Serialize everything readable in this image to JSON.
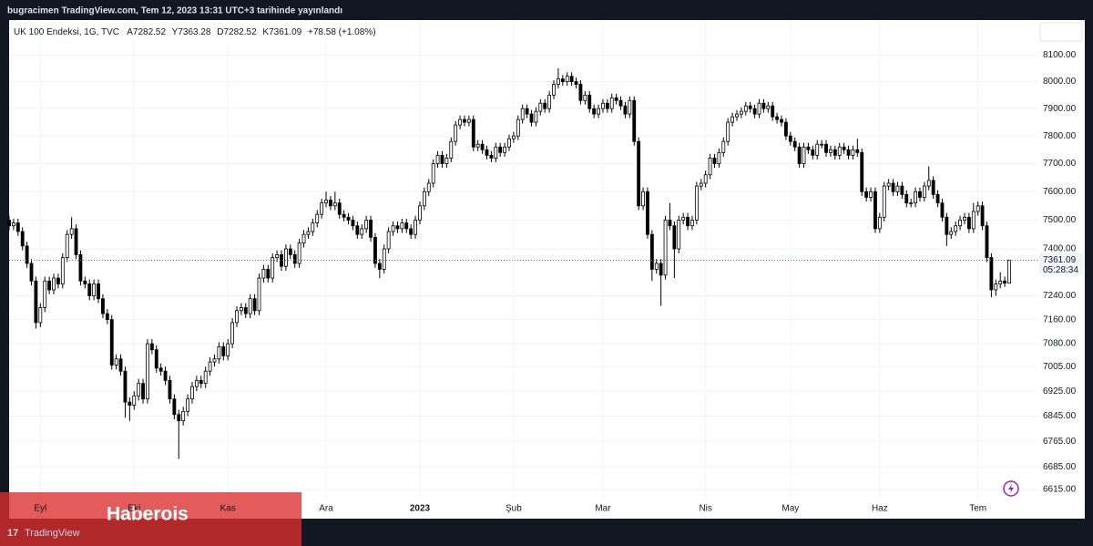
{
  "top_bar": {
    "text": "bugracimen TradingView.com, Tem 12, 2023 13:31 UTC+3 tarihinde yayınlandı"
  },
  "chart_data": {
    "type": "candlestick",
    "symbol": "UK 100 Endeksi, 1G, TVC",
    "ohlc_labels": [
      "A7282.52",
      "Y7363.28",
      "D7282.52",
      "K7361.09"
    ],
    "change_label": "+78.58 (+1.08%)",
    "log": true,
    "grid": true,
    "up_color": "#ffffff",
    "down_color": "#000000",
    "wick_color": "#000000",
    "ylim": [
      6584,
      8233
    ],
    "yticks": [
      {
        "value": 8100,
        "label": "8100.00"
      },
      {
        "value": 8000,
        "label": "8000.00"
      },
      {
        "value": 7900,
        "label": "7900.00"
      },
      {
        "value": 7800,
        "label": "7800.00"
      },
      {
        "value": 7700,
        "label": "7700.00"
      },
      {
        "value": 7600,
        "label": "7600.00"
      },
      {
        "value": 7500,
        "label": "7500.00"
      },
      {
        "value": 7400,
        "label": "7400.00"
      },
      {
        "value": 7240,
        "label": "7240.00"
      },
      {
        "value": 7160,
        "label": "7160.00"
      },
      {
        "value": 7080,
        "label": "7080.00"
      },
      {
        "value": 7005,
        "label": "7005.00"
      },
      {
        "value": 6925,
        "label": "6925.00"
      },
      {
        "value": 6845,
        "label": "6845.00"
      },
      {
        "value": 6765,
        "label": "6765.00"
      },
      {
        "value": 6685,
        "label": "6685.00"
      },
      {
        "value": 6615,
        "label": "6615.00"
      }
    ],
    "last_price": 7361.09,
    "countdown": "05:28:34",
    "xticks": [
      {
        "value": 7,
        "label": "Eyl"
      },
      {
        "value": 28,
        "label": "Eki"
      },
      {
        "value": 49,
        "label": "Kas"
      },
      {
        "value": 71,
        "label": "Ara"
      },
      {
        "value": 92,
        "label": "2023",
        "major": true
      },
      {
        "value": 113,
        "label": "Şub"
      },
      {
        "value": 133,
        "label": "Mar"
      },
      {
        "value": 156,
        "label": "Nis"
      },
      {
        "value": 175,
        "label": "May"
      },
      {
        "value": 195,
        "label": "Haz"
      },
      {
        "value": 217,
        "label": "Tem"
      }
    ],
    "candles": [
      [
        7500,
        7515,
        7465,
        7480
      ],
      [
        7480,
        7505,
        7465,
        7490
      ],
      [
        7490,
        7505,
        7445,
        7460
      ],
      [
        7460,
        7475,
        7395,
        7410
      ],
      [
        7410,
        7425,
        7335,
        7350
      ],
      [
        7350,
        7365,
        7275,
        7290
      ],
      [
        7290,
        7305,
        7130,
        7150
      ],
      [
        7150,
        7215,
        7135,
        7200
      ],
      [
        7200,
        7305,
        7185,
        7290
      ],
      [
        7290,
        7305,
        7245,
        7260
      ],
      [
        7260,
        7315,
        7245,
        7300
      ],
      [
        7300,
        7315,
        7265,
        7280
      ],
      [
        7280,
        7385,
        7265,
        7370
      ],
      [
        7370,
        7465,
        7355,
        7450
      ],
      [
        7450,
        7510,
        7435,
        7470
      ],
      [
        7470,
        7485,
        7365,
        7380
      ],
      [
        7380,
        7395,
        7275,
        7290
      ],
      [
        7290,
        7305,
        7265,
        7280
      ],
      [
        7280,
        7295,
        7225,
        7240
      ],
      [
        7240,
        7295,
        7225,
        7280
      ],
      [
        7280,
        7295,
        7215,
        7230
      ],
      [
        7230,
        7245,
        7165,
        7180
      ],
      [
        7180,
        7195,
        7145,
        7160
      ],
      [
        7160,
        7175,
        6995,
        7010
      ],
      [
        7010,
        7045,
        6995,
        7030
      ],
      [
        7030,
        7045,
        6975,
        6990
      ],
      [
        6990,
        7005,
        6840,
        6890
      ],
      [
        6890,
        6905,
        6830,
        6880
      ],
      [
        6880,
        6925,
        6865,
        6910
      ],
      [
        6910,
        6965,
        6895,
        6950
      ],
      [
        6950,
        6965,
        6885,
        6900
      ],
      [
        6900,
        7095,
        6885,
        7080
      ],
      [
        7080,
        7095,
        7045,
        7060
      ],
      [
        7060,
        7075,
        6985,
        7000
      ],
      [
        7000,
        7015,
        6975,
        6990
      ],
      [
        6990,
        7005,
        6945,
        6960
      ],
      [
        6960,
        6975,
        6885,
        6900
      ],
      [
        6900,
        6915,
        6835,
        6850
      ],
      [
        6850,
        6865,
        6710,
        6830
      ],
      [
        6830,
        6875,
        6815,
        6860
      ],
      [
        6860,
        6915,
        6845,
        6900
      ],
      [
        6900,
        6955,
        6885,
        6940
      ],
      [
        6940,
        6975,
        6925,
        6960
      ],
      [
        6960,
        6975,
        6935,
        6950
      ],
      [
        6950,
        7005,
        6935,
        6990
      ],
      [
        6990,
        7035,
        6975,
        7020
      ],
      [
        7020,
        7045,
        7005,
        7030
      ],
      [
        7030,
        7085,
        7015,
        7070
      ],
      [
        7070,
        7085,
        7025,
        7040
      ],
      [
        7040,
        7095,
        7025,
        7080
      ],
      [
        7080,
        7165,
        7065,
        7150
      ],
      [
        7150,
        7205,
        7135,
        7190
      ],
      [
        7190,
        7215,
        7175,
        7200
      ],
      [
        7200,
        7215,
        7165,
        7180
      ],
      [
        7180,
        7245,
        7165,
        7230
      ],
      [
        7230,
        7245,
        7175,
        7190
      ],
      [
        7190,
        7315,
        7175,
        7300
      ],
      [
        7300,
        7345,
        7285,
        7330
      ],
      [
        7330,
        7345,
        7285,
        7300
      ],
      [
        7300,
        7385,
        7285,
        7370
      ],
      [
        7370,
        7395,
        7355,
        7380
      ],
      [
        7380,
        7395,
        7325,
        7340
      ],
      [
        7340,
        7415,
        7325,
        7400
      ],
      [
        7400,
        7415,
        7365,
        7380
      ],
      [
        7380,
        7395,
        7335,
        7350
      ],
      [
        7350,
        7435,
        7335,
        7420
      ],
      [
        7420,
        7465,
        7405,
        7450
      ],
      [
        7450,
        7475,
        7435,
        7460
      ],
      [
        7460,
        7505,
        7445,
        7490
      ],
      [
        7490,
        7535,
        7475,
        7520
      ],
      [
        7520,
        7575,
        7505,
        7560
      ],
      [
        7560,
        7600,
        7545,
        7570
      ],
      [
        7570,
        7585,
        7535,
        7550
      ],
      [
        7550,
        7600,
        7535,
        7560
      ],
      [
        7560,
        7575,
        7505,
        7520
      ],
      [
        7520,
        7535,
        7495,
        7510
      ],
      [
        7510,
        7525,
        7485,
        7500
      ],
      [
        7500,
        7515,
        7465,
        7480
      ],
      [
        7480,
        7495,
        7435,
        7450
      ],
      [
        7450,
        7485,
        7435,
        7470
      ],
      [
        7470,
        7515,
        7455,
        7500
      ],
      [
        7500,
        7515,
        7425,
        7440
      ],
      [
        7440,
        7455,
        7335,
        7350
      ],
      [
        7350,
        7365,
        7300,
        7330
      ],
      [
        7330,
        7415,
        7315,
        7400
      ],
      [
        7400,
        7475,
        7385,
        7460
      ],
      [
        7460,
        7495,
        7445,
        7480
      ],
      [
        7480,
        7495,
        7455,
        7470
      ],
      [
        7470,
        7505,
        7455,
        7490
      ],
      [
        7490,
        7505,
        7455,
        7470
      ],
      [
        7470,
        7485,
        7435,
        7450
      ],
      [
        7450,
        7515,
        7435,
        7500
      ],
      [
        7500,
        7565,
        7485,
        7550
      ],
      [
        7550,
        7615,
        7535,
        7600
      ],
      [
        7600,
        7645,
        7585,
        7630
      ],
      [
        7630,
        7715,
        7615,
        7700
      ],
      [
        7700,
        7745,
        7685,
        7730
      ],
      [
        7730,
        7745,
        7685,
        7700
      ],
      [
        7700,
        7735,
        7685,
        7720
      ],
      [
        7720,
        7795,
        7705,
        7780
      ],
      [
        7780,
        7855,
        7765,
        7840
      ],
      [
        7840,
        7875,
        7825,
        7860
      ],
      [
        7860,
        7875,
        7835,
        7850
      ],
      [
        7850,
        7875,
        7835,
        7860
      ],
      [
        7860,
        7875,
        7745,
        7760
      ],
      [
        7760,
        7785,
        7745,
        7770
      ],
      [
        7770,
        7785,
        7735,
        7750
      ],
      [
        7750,
        7765,
        7715,
        7730
      ],
      [
        7730,
        7745,
        7705,
        7720
      ],
      [
        7720,
        7775,
        7705,
        7760
      ],
      [
        7760,
        7775,
        7725,
        7740
      ],
      [
        7740,
        7775,
        7725,
        7760
      ],
      [
        7760,
        7805,
        7745,
        7790
      ],
      [
        7790,
        7815,
        7775,
        7800
      ],
      [
        7800,
        7875,
        7785,
        7860
      ],
      [
        7860,
        7915,
        7845,
        7900
      ],
      [
        7900,
        7915,
        7865,
        7880
      ],
      [
        7880,
        7895,
        7835,
        7850
      ],
      [
        7850,
        7905,
        7835,
        7890
      ],
      [
        7890,
        7935,
        7875,
        7920
      ],
      [
        7920,
        7935,
        7885,
        7900
      ],
      [
        7900,
        7965,
        7885,
        7950
      ],
      [
        7950,
        8005,
        7935,
        7990
      ],
      [
        7990,
        8050,
        7975,
        8010
      ],
      [
        8010,
        8025,
        7985,
        8000
      ],
      [
        8000,
        8035,
        7985,
        8020
      ],
      [
        8020,
        8035,
        7985,
        8000
      ],
      [
        8000,
        8015,
        7975,
        7990
      ],
      [
        7990,
        8005,
        7915,
        7930
      ],
      [
        7930,
        7965,
        7915,
        7950
      ],
      [
        7950,
        7965,
        7885,
        7900
      ],
      [
        7900,
        7915,
        7865,
        7880
      ],
      [
        7880,
        7915,
        7865,
        7900
      ],
      [
        7900,
        7935,
        7885,
        7920
      ],
      [
        7920,
        7935,
        7885,
        7900
      ],
      [
        7900,
        7955,
        7885,
        7940
      ],
      [
        7940,
        7955,
        7915,
        7930
      ],
      [
        7930,
        7945,
        7895,
        7910
      ],
      [
        7910,
        7925,
        7865,
        7880
      ],
      [
        7880,
        7945,
        7865,
        7930
      ],
      [
        7930,
        7945,
        7765,
        7780
      ],
      [
        7780,
        7795,
        7535,
        7550
      ],
      [
        7550,
        7615,
        7535,
        7600
      ],
      [
        7600,
        7615,
        7435,
        7450
      ],
      [
        7450,
        7465,
        7290,
        7330
      ],
      [
        7330,
        7365,
        7315,
        7350
      ],
      [
        7350,
        7365,
        7206,
        7310
      ],
      [
        7310,
        7515,
        7295,
        7500
      ],
      [
        7500,
        7560,
        7465,
        7480
      ],
      [
        7480,
        7495,
        7300,
        7400
      ],
      [
        7400,
        7515,
        7385,
        7500
      ],
      [
        7500,
        7525,
        7485,
        7510
      ],
      [
        7510,
        7525,
        7465,
        7480
      ],
      [
        7480,
        7515,
        7465,
        7500
      ],
      [
        7500,
        7635,
        7485,
        7620
      ],
      [
        7620,
        7645,
        7605,
        7630
      ],
      [
        7630,
        7675,
        7615,
        7660
      ],
      [
        7660,
        7735,
        7645,
        7720
      ],
      [
        7720,
        7735,
        7685,
        7700
      ],
      [
        7700,
        7755,
        7685,
        7740
      ],
      [
        7740,
        7795,
        7725,
        7780
      ],
      [
        7780,
        7865,
        7765,
        7850
      ],
      [
        7850,
        7885,
        7835,
        7870
      ],
      [
        7870,
        7895,
        7855,
        7880
      ],
      [
        7880,
        7905,
        7865,
        7890
      ],
      [
        7890,
        7925,
        7875,
        7910
      ],
      [
        7910,
        7925,
        7885,
        7900
      ],
      [
        7900,
        7915,
        7865,
        7880
      ],
      [
        7880,
        7935,
        7865,
        7920
      ],
      [
        7920,
        7935,
        7885,
        7900
      ],
      [
        7900,
        7925,
        7885,
        7910
      ],
      [
        7910,
        7925,
        7855,
        7870
      ],
      [
        7870,
        7885,
        7845,
        7860
      ],
      [
        7860,
        7875,
        7835,
        7850
      ],
      [
        7850,
        7865,
        7785,
        7800
      ],
      [
        7800,
        7815,
        7765,
        7780
      ],
      [
        7780,
        7795,
        7745,
        7760
      ],
      [
        7760,
        7775,
        7685,
        7700
      ],
      [
        7700,
        7775,
        7685,
        7760
      ],
      [
        7760,
        7775,
        7735,
        7750
      ],
      [
        7750,
        7765,
        7715,
        7730
      ],
      [
        7730,
        7785,
        7715,
        7770
      ],
      [
        7770,
        7785,
        7755,
        7770
      ],
      [
        7770,
        7785,
        7725,
        7740
      ],
      [
        7740,
        7765,
        7725,
        7750
      ],
      [
        7750,
        7765,
        7715,
        7730
      ],
      [
        7730,
        7775,
        7715,
        7760
      ],
      [
        7760,
        7775,
        7735,
        7750
      ],
      [
        7750,
        7765,
        7715,
        7730
      ],
      [
        7730,
        7765,
        7715,
        7750
      ],
      [
        7750,
        7790,
        7725,
        7740
      ],
      [
        7740,
        7755,
        7585,
        7600
      ],
      [
        7600,
        7615,
        7565,
        7580
      ],
      [
        7580,
        7615,
        7565,
        7600
      ],
      [
        7600,
        7615,
        7455,
        7470
      ],
      [
        7470,
        7525,
        7455,
        7510
      ],
      [
        7510,
        7635,
        7495,
        7620
      ],
      [
        7620,
        7645,
        7605,
        7630
      ],
      [
        7630,
        7645,
        7585,
        7600
      ],
      [
        7600,
        7635,
        7585,
        7620
      ],
      [
        7620,
        7635,
        7575,
        7590
      ],
      [
        7590,
        7605,
        7545,
        7560
      ],
      [
        7560,
        7575,
        7545,
        7560
      ],
      [
        7560,
        7615,
        7545,
        7600
      ],
      [
        7600,
        7615,
        7565,
        7580
      ],
      [
        7580,
        7635,
        7565,
        7620
      ],
      [
        7620,
        7690,
        7605,
        7640
      ],
      [
        7640,
        7655,
        7575,
        7590
      ],
      [
        7590,
        7605,
        7545,
        7560
      ],
      [
        7560,
        7575,
        7495,
        7510
      ],
      [
        7510,
        7525,
        7410,
        7450
      ],
      [
        7450,
        7475,
        7435,
        7460
      ],
      [
        7460,
        7495,
        7445,
        7480
      ],
      [
        7480,
        7515,
        7465,
        7500
      ],
      [
        7500,
        7525,
        7485,
        7510
      ],
      [
        7510,
        7525,
        7455,
        7470
      ],
      [
        7470,
        7560,
        7455,
        7530
      ],
      [
        7530,
        7565,
        7515,
        7550
      ],
      [
        7550,
        7565,
        7465,
        7480
      ],
      [
        7480,
        7495,
        7355,
        7370
      ],
      [
        7370,
        7385,
        7235,
        7260
      ],
      [
        7260,
        7295,
        7240,
        7280
      ],
      [
        7280,
        7320,
        7265,
        7290
      ],
      [
        7290,
        7305,
        7270,
        7282.52
      ],
      [
        7282.52,
        7363.28,
        7282.52,
        7361.09
      ]
    ]
  },
  "watermark": {
    "brand": "Haberois",
    "logo": "TradingView"
  }
}
